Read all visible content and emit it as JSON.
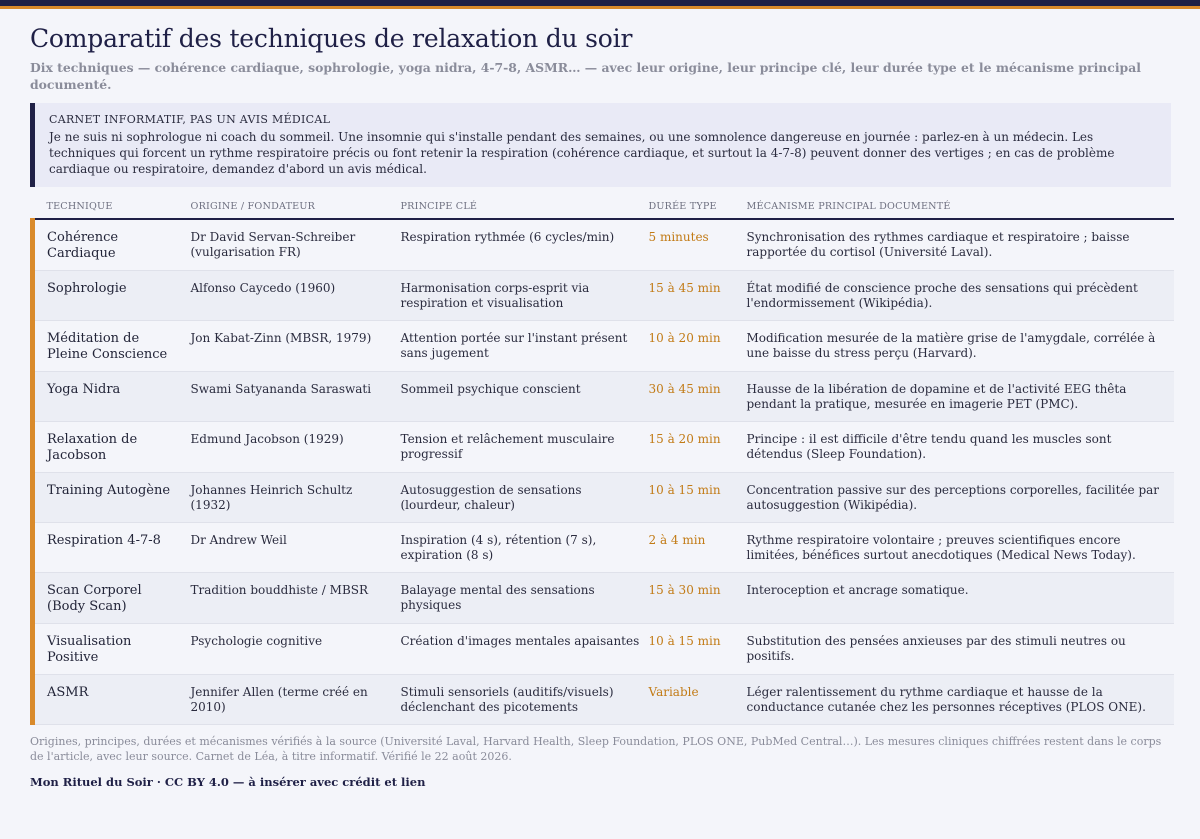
{
  "title": "Comparatif des techniques de relaxation du soir",
  "subtitle": "Dix techniques — cohérence cardiaque, sophrologie, yoga nidra, 4-7-8, ASMR… — avec leur origine, leur principe clé, leur durée type et le mécanisme principal documenté.",
  "notice": {
    "title": "CARNET INFORMATIF, PAS UN AVIS MÉDICAL",
    "body": "Je ne suis ni sophrologue ni coach du sommeil. Une insomnie qui s'installe pendant des semaines, ou une somnolence dangereuse en journée : parlez-en à un médecin. Les techniques qui forcent un rythme respiratoire précis ou font retenir la respiration (cohérence cardiaque, et surtout la 4-7-8) peuvent donner des vertiges ; en cas de problème cardiaque ou respiratoire, demandez d'abord un avis médical."
  },
  "table": {
    "headers": [
      "TECHNIQUE",
      "ORIGINE / FONDATEUR",
      "PRINCIPE CLÉ",
      "DURÉE TYPE",
      "MÉCANISME PRINCIPAL DOCUMENTÉ"
    ],
    "rows": [
      [
        "Cohérence Cardiaque",
        "Dr David Servan-Schreiber (vulgarisation FR)",
        "Respiration rythmée (6 cycles/min)",
        "5 minutes",
        "Synchronisation des rythmes cardiaque et respiratoire ; baisse rapportée du cortisol (Université Laval)."
      ],
      [
        "Sophrologie",
        "Alfonso Caycedo (1960)",
        "Harmonisation corps-esprit via respiration et visualisation",
        "15 à 45 min",
        "État modifié de conscience proche des sensations qui précèdent l'endormissement (Wikipédia)."
      ],
      [
        "Méditation de Pleine Conscience",
        "Jon Kabat-Zinn (MBSR, 1979)",
        "Attention portée sur l'instant présent sans jugement",
        "10 à 20 min",
        "Modification mesurée de la matière grise de l'amygdale, corrélée à une baisse du stress perçu (Harvard)."
      ],
      [
        "Yoga Nidra",
        "Swami Satyananda Saraswati",
        "Sommeil psychique conscient",
        "30 à 45 min",
        "Hausse de la libération de dopamine et de l'activité EEG thêta pendant la pratique, mesurée en imagerie PET (PMC)."
      ],
      [
        "Relaxation de Jacobson",
        "Edmund Jacobson (1929)",
        "Tension et relâchement musculaire progressif",
        "15 à 20 min",
        "Principe : il est difficile d'être tendu quand les muscles sont détendus (Sleep Foundation)."
      ],
      [
        "Training Autogène",
        "Johannes Heinrich Schultz (1932)",
        "Autosuggestion de sensations (lourdeur, chaleur)",
        "10 à 15 min",
        "Concentration passive sur des perceptions corporelles, facilitée par autosuggestion (Wikipédia)."
      ],
      [
        "Respiration 4-7-8",
        "Dr Andrew Weil",
        "Inspiration (4 s), rétention (7 s), expiration (8 s)",
        "2 à 4 min",
        "Rythme respiratoire volontaire ; preuves scientifiques encore limitées, bénéfices surtout anecdotiques (Medical News Today)."
      ],
      [
        "Scan Corporel (Body Scan)",
        "Tradition bouddhiste / MBSR",
        "Balayage mental des sensations physiques",
        "15 à 30 min",
        "Interoception et ancrage somatique."
      ],
      [
        "Visualisation Positive",
        "Psychologie cognitive",
        "Création d'images mentales apaisantes",
        "10 à 15 min",
        "Substitution des pensées anxieuses par des stimuli neutres ou positifs."
      ],
      [
        "ASMR",
        "Jennifer Allen (terme créé en 2010)",
        "Stimuli sensoriels (auditifs/visuels) déclenchant des picotements",
        "Variable",
        "Léger ralentissement du rythme cardiaque et hausse de la conductance cutanée chez les personnes réceptives (PLOS ONE)."
      ]
    ]
  },
  "footer": {
    "note": "Origines, principes, durées et mécanismes vérifiés à la source (Université Laval, Harvard Health, Sleep Foundation, PLOS ONE, PubMed Central…). Les mesures cliniques chiffrées restent dans le corps de l'article, avec leur source. Carnet de Léa, à titre informatif. Vérifié le 22 août 2026.",
    "credit": "Mon Rituel du Soir · CC BY 4.0 — à insérer avec crédit et lien"
  },
  "colors": {
    "navy": "#1f2046",
    "accent": "#d98a2b",
    "duration": "#c27b16",
    "background": "#f4f5fa"
  }
}
